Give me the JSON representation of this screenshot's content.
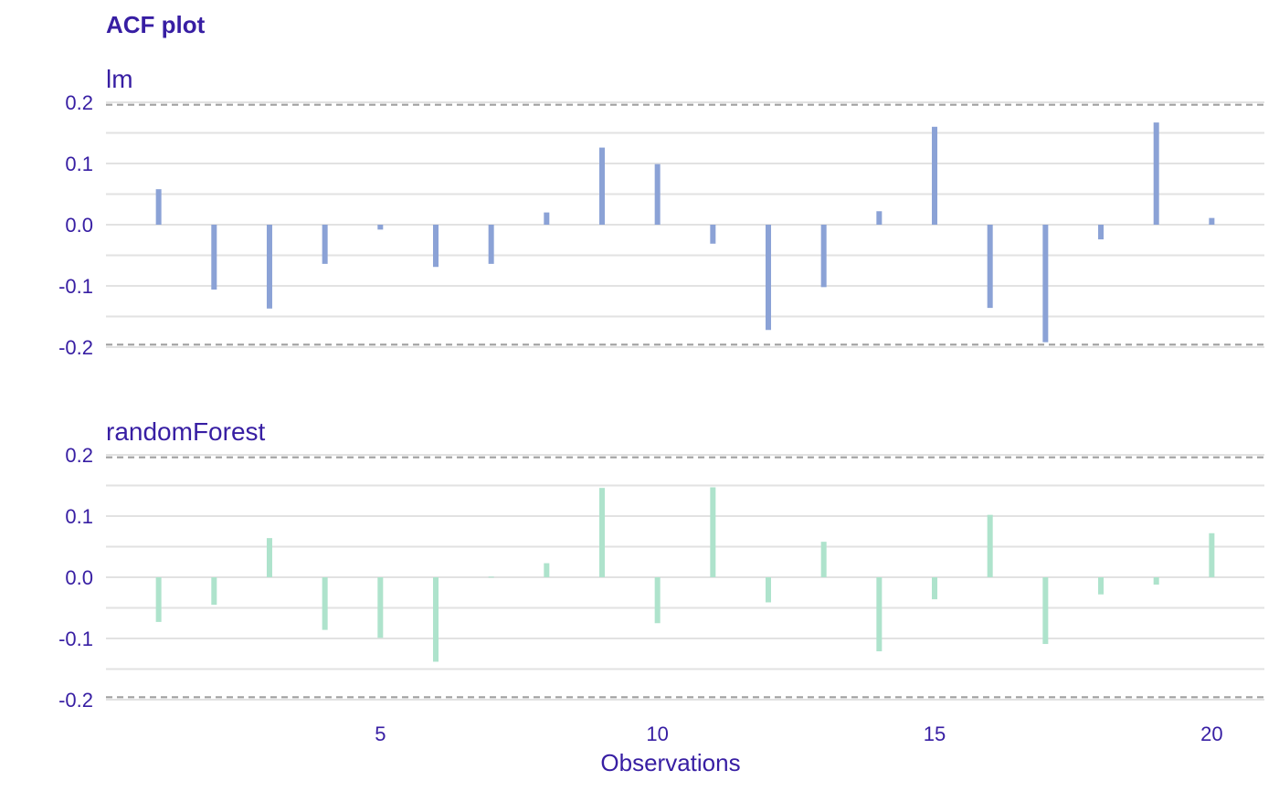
{
  "chart_data": {
    "type": "bar",
    "title": "ACF plot",
    "xlabel": "Observations",
    "ylabel": "",
    "xlim": [
      0.05,
      20.95
    ],
    "ylim": [
      -0.21,
      0.2
    ],
    "x_ticks": [
      5,
      10,
      15,
      20
    ],
    "y_ticks": [
      -0.2,
      -0.1,
      0.0,
      0.1,
      0.2
    ],
    "y_tick_labels": [
      "-0.2",
      "-0.1",
      "0.0",
      "0.1",
      "0.2"
    ],
    "confidence_bounds": [
      0.196,
      -0.196
    ],
    "grid": true,
    "x": [
      1,
      2,
      3,
      4,
      5,
      6,
      7,
      8,
      9,
      10,
      11,
      12,
      13,
      14,
      15,
      16,
      17,
      18,
      19,
      20
    ],
    "series": [
      {
        "name": "lm",
        "color": "#8ba2d6",
        "values": [
          0.058,
          -0.106,
          -0.137,
          -0.064,
          -0.008,
          -0.069,
          -0.064,
          0.02,
          0.126,
          0.099,
          -0.031,
          -0.172,
          -0.102,
          0.022,
          0.16,
          -0.136,
          -0.192,
          -0.024,
          0.167,
          0.011
        ]
      },
      {
        "name": "randomForest",
        "color": "#aee3cc",
        "values": [
          -0.073,
          -0.045,
          0.064,
          -0.086,
          -0.099,
          -0.138,
          0.001,
          0.023,
          0.146,
          -0.075,
          0.147,
          -0.041,
          0.058,
          -0.121,
          -0.036,
          0.102,
          -0.109,
          -0.028,
          -0.012,
          0.072
        ]
      }
    ]
  }
}
